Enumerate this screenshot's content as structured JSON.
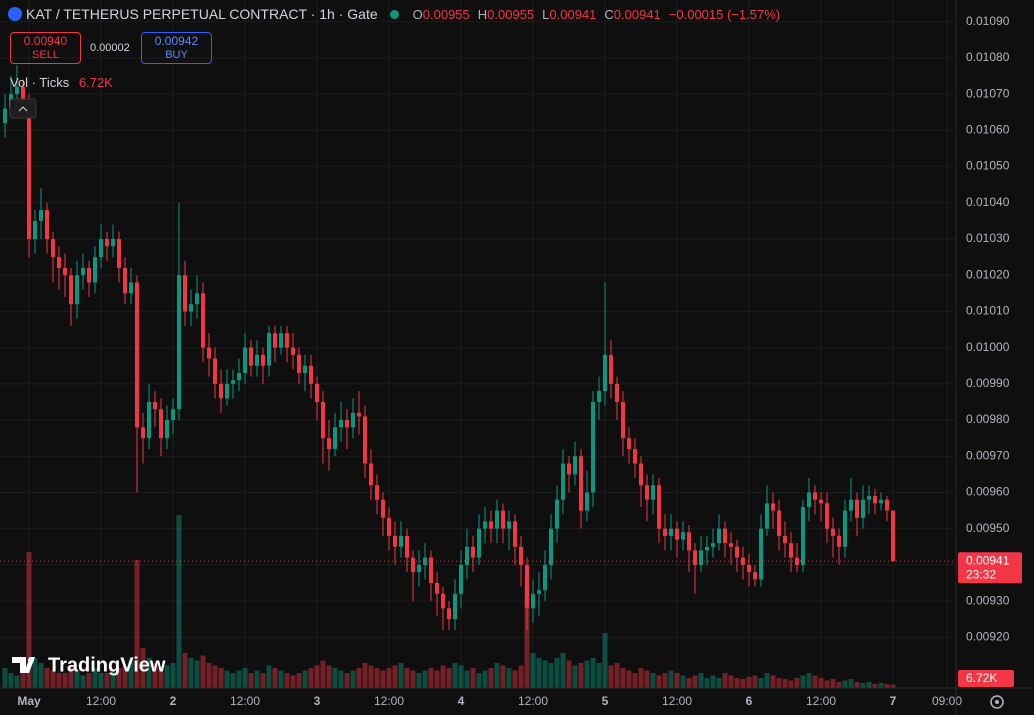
{
  "header": {
    "title": "KAT / TETHERUS PERPETUAL CONTRACT · 1h · Gate",
    "o_label": "O",
    "h_label": "H",
    "l_label": "L",
    "c_label": "C",
    "change": "−0.00015 (−1.57%)"
  },
  "trade": {
    "sell_price": "0.00940",
    "sell": "SELL",
    "spread": "0.00002",
    "buy_price": "0.00942",
    "buy": "BUY"
  },
  "volume_legend": "Vol · Ticks",
  "countdown": "23:32",
  "brand": "TradingView",
  "chart_data": {
    "type": "candlestick",
    "categories": [
      null,
      null,
      null,
      null,
      "May",
      null,
      null,
      null,
      null,
      null,
      null,
      null,
      null,
      null,
      null,
      null,
      "12:00",
      null,
      null,
      null,
      null,
      null,
      null,
      null,
      null,
      null,
      null,
      null,
      "2",
      null,
      null,
      null,
      null,
      null,
      null,
      null,
      null,
      null,
      null,
      null,
      "12:00",
      null,
      null,
      null,
      null,
      null,
      null,
      null,
      null,
      null,
      null,
      null,
      "3",
      null,
      null,
      null,
      null,
      null,
      null,
      null,
      null,
      null,
      null,
      null,
      "12:00",
      null,
      null,
      null,
      null,
      null,
      null,
      null,
      null,
      null,
      null,
      null,
      "4",
      null,
      null,
      null,
      null,
      null,
      null,
      null,
      null,
      null,
      null,
      null,
      "12:00",
      null,
      null,
      null,
      null,
      null,
      null,
      null,
      null,
      null,
      null,
      null,
      "5",
      null,
      null,
      null,
      null,
      null,
      null,
      null,
      null,
      null,
      null,
      null,
      "12:00",
      null,
      null,
      null,
      null,
      null,
      null,
      null,
      null,
      null,
      null,
      null,
      "6",
      null,
      null,
      null,
      null,
      null,
      null,
      null,
      null,
      null,
      null,
      null,
      "12:00",
      null,
      null,
      null,
      null,
      null,
      null,
      null,
      null,
      null,
      null,
      null,
      "7",
      null,
      null,
      null,
      null,
      null,
      null,
      null,
      null,
      "09:00"
    ],
    "open": [
      0.01062,
      0.01066,
      0.0107,
      0.01072,
      0.01068,
      0.0103,
      0.01035,
      0.01038,
      0.0103,
      0.01025,
      0.01022,
      0.0102,
      0.01012,
      0.0102,
      0.01022,
      0.01018,
      0.01025,
      0.0103,
      0.01028,
      0.0103,
      0.01022,
      0.01015,
      0.01018,
      0.00978,
      0.00975,
      0.00985,
      0.00983,
      0.00975,
      0.0098,
      0.00983,
      0.0102,
      0.0101,
      0.01012,
      0.01015,
      0.01,
      0.00997,
      0.0099,
      0.00986,
      0.0099,
      0.00991,
      0.00993,
      0.01,
      0.00995,
      0.00998,
      0.00995,
      0.01004,
      0.01,
      0.01004,
      0.01,
      0.00998,
      0.00993,
      0.00995,
      0.0099,
      0.00985,
      0.00975,
      0.00972,
      0.00978,
      0.0098,
      0.00978,
      0.00982,
      0.00981,
      0.00968,
      0.00962,
      0.00958,
      0.00953,
      0.00948,
      0.00945,
      0.00948,
      0.00942,
      0.00938,
      0.0094,
      0.00942,
      0.00935,
      0.00932,
      0.00928,
      0.00925,
      0.00932,
      0.0094,
      0.00945,
      0.00942,
      0.0095,
      0.00952,
      0.0095,
      0.00955,
      0.0095,
      0.00952,
      0.00945,
      0.0094,
      0.00928,
      0.00932,
      0.00933,
      0.0094,
      0.0095,
      0.00958,
      0.00968,
      0.00965,
      0.0097,
      0.00955,
      0.0096,
      0.00985,
      0.00988,
      0.00998,
      0.0099,
      0.00985,
      0.00975,
      0.00972,
      0.00968,
      0.00962,
      0.00958,
      0.00962,
      0.0095,
      0.00948,
      0.0095,
      0.00947,
      0.00949,
      0.00944,
      0.0094,
      0.00944,
      0.00945,
      0.00946,
      0.0095,
      0.00946,
      0.00945,
      0.00942,
      0.0094,
      0.00938,
      0.00936,
      0.0095,
      0.00957,
      0.00955,
      0.00948,
      0.00946,
      0.00942,
      0.0094,
      0.00956,
      0.0096,
      0.00958,
      0.00957,
      0.0095,
      0.00948,
      0.00945,
      0.00955,
      0.00958,
      0.00953,
      0.00958,
      0.00959,
      0.00957,
      0.00958,
      0.00955,
      null,
      null,
      null,
      null,
      null,
      null,
      null,
      null,
      null
    ],
    "high": [
      0.0107,
      0.01075,
      0.01078,
      0.01074,
      0.0107,
      0.01038,
      0.01044,
      0.0104,
      0.01032,
      0.01028,
      0.01026,
      0.01022,
      0.01024,
      0.01026,
      0.01024,
      0.01028,
      0.01034,
      0.01032,
      0.01034,
      0.01032,
      0.01025,
      0.01022,
      0.0102,
      0.00982,
      0.0099,
      0.00988,
      0.00986,
      0.00984,
      0.00986,
      0.0104,
      0.01024,
      0.01016,
      0.0102,
      0.01018,
      0.01004,
      0.01,
      0.00994,
      0.00994,
      0.00994,
      0.00997,
      0.01004,
      0.01002,
      0.01002,
      0.01,
      0.01006,
      0.01006,
      0.01006,
      0.01006,
      0.01004,
      0.01,
      0.00998,
      0.00998,
      0.00992,
      0.00988,
      0.0098,
      0.00982,
      0.00985,
      0.00983,
      0.00986,
      0.00988,
      0.00984,
      0.00972,
      0.00965,
      0.0096,
      0.00956,
      0.00952,
      0.00952,
      0.0095,
      0.00944,
      0.00944,
      0.00946,
      0.00944,
      0.00938,
      0.00934,
      0.0093,
      0.00936,
      0.00944,
      0.0095,
      0.00948,
      0.00954,
      0.00956,
      0.00955,
      0.00958,
      0.00957,
      0.00955,
      0.00954,
      0.00948,
      0.00942,
      0.00936,
      0.00938,
      0.00944,
      0.00954,
      0.00962,
      0.00972,
      0.0097,
      0.00974,
      0.00972,
      0.00966,
      0.00988,
      0.00992,
      0.01018,
      0.01002,
      0.00992,
      0.00988,
      0.00978,
      0.00975,
      0.0097,
      0.00965,
      0.00965,
      0.00964,
      0.00954,
      0.00954,
      0.00952,
      0.00952,
      0.00951,
      0.00946,
      0.00948,
      0.00948,
      0.0095,
      0.00954,
      0.00952,
      0.00949,
      0.00947,
      0.00945,
      0.00943,
      0.0094,
      0.00954,
      0.00962,
      0.0096,
      0.00958,
      0.00952,
      0.00949,
      0.00946,
      0.00958,
      0.00964,
      0.00962,
      0.0096,
      0.0096,
      0.00953,
      0.0095,
      0.00958,
      0.00964,
      0.0096,
      0.00962,
      0.00962,
      0.00961,
      0.0096,
      0.00959,
      0.00955,
      null,
      null,
      null,
      null,
      null,
      null,
      null,
      null,
      null
    ],
    "low": [
      0.01058,
      0.01064,
      0.01066,
      0.01064,
      0.01025,
      0.01026,
      0.0103,
      0.01026,
      0.01018,
      0.01016,
      0.01014,
      0.01006,
      0.01008,
      0.01016,
      0.01014,
      0.01015,
      0.01022,
      0.01024,
      0.01025,
      0.01018,
      0.01012,
      0.01012,
      0.0096,
      0.00968,
      0.00972,
      0.00978,
      0.0097,
      0.00972,
      0.00976,
      0.0098,
      0.01006,
      0.01006,
      0.01008,
      0.00996,
      0.00992,
      0.00986,
      0.00982,
      0.00984,
      0.00986,
      0.00988,
      0.0099,
      0.00992,
      0.00992,
      0.0099,
      0.00992,
      0.00996,
      0.00998,
      0.00996,
      0.00994,
      0.0099,
      0.00988,
      0.00986,
      0.0098,
      0.00968,
      0.00966,
      0.0097,
      0.00974,
      0.00972,
      0.00975,
      0.00976,
      0.00964,
      0.00958,
      0.00954,
      0.00948,
      0.00944,
      0.0094,
      0.00942,
      0.00938,
      0.0093,
      0.00934,
      0.00936,
      0.0093,
      0.00926,
      0.00922,
      0.00922,
      0.00922,
      0.00928,
      0.00936,
      0.00938,
      0.0094,
      0.00946,
      0.00946,
      0.00946,
      0.00946,
      0.00944,
      0.0094,
      0.00934,
      0.00922,
      0.00924,
      0.00926,
      0.0093,
      0.00936,
      0.00946,
      0.00954,
      0.0096,
      0.00962,
      0.0095,
      0.00952,
      0.00956,
      0.0098,
      0.00984,
      0.00986,
      0.0098,
      0.0097,
      0.00968,
      0.00964,
      0.00956,
      0.00952,
      0.00954,
      0.00946,
      0.00944,
      0.00944,
      0.00942,
      0.00944,
      0.00938,
      0.00932,
      0.00938,
      0.0094,
      0.00942,
      0.00944,
      0.00942,
      0.0094,
      0.00938,
      0.00936,
      0.00934,
      0.00934,
      0.00934,
      0.00948,
      0.0095,
      0.00944,
      0.00942,
      0.00938,
      0.00938,
      0.00938,
      0.00952,
      0.00954,
      0.00952,
      0.00946,
      0.00942,
      0.0094,
      0.00942,
      0.00952,
      0.00948,
      0.0095,
      0.00954,
      0.00954,
      0.00955,
      0.00952,
      0.00941,
      null,
      null,
      null,
      null,
      null,
      null,
      null,
      null,
      null
    ],
    "close": [
      0.01066,
      0.0107,
      0.01072,
      0.01068,
      0.0103,
      0.01035,
      0.01038,
      0.0103,
      0.01025,
      0.01022,
      0.0102,
      0.01012,
      0.0102,
      0.01022,
      0.01018,
      0.01025,
      0.0103,
      0.01028,
      0.0103,
      0.01022,
      0.01015,
      0.01018,
      0.00978,
      0.00975,
      0.00985,
      0.00983,
      0.00975,
      0.0098,
      0.00983,
      0.0102,
      0.0101,
      0.01012,
      0.01015,
      0.01,
      0.00997,
      0.0099,
      0.00986,
      0.0099,
      0.00991,
      0.00993,
      0.01,
      0.00995,
      0.00998,
      0.00995,
      0.01004,
      0.01,
      0.01004,
      0.01,
      0.00998,
      0.00993,
      0.00995,
      0.0099,
      0.00985,
      0.00975,
      0.00972,
      0.00978,
      0.0098,
      0.00978,
      0.00982,
      0.00981,
      0.00968,
      0.00962,
      0.00958,
      0.00953,
      0.00948,
      0.00945,
      0.00948,
      0.00942,
      0.00938,
      0.0094,
      0.00942,
      0.00935,
      0.00932,
      0.00928,
      0.00925,
      0.00932,
      0.0094,
      0.00945,
      0.00942,
      0.0095,
      0.00952,
      0.0095,
      0.00955,
      0.0095,
      0.00952,
      0.00945,
      0.0094,
      0.00928,
      0.00932,
      0.00933,
      0.0094,
      0.0095,
      0.00958,
      0.00968,
      0.00965,
      0.0097,
      0.00955,
      0.0096,
      0.00985,
      0.00988,
      0.00998,
      0.0099,
      0.00985,
      0.00975,
      0.00972,
      0.00968,
      0.00962,
      0.00958,
      0.00962,
      0.0095,
      0.00948,
      0.0095,
      0.00947,
      0.00949,
      0.00944,
      0.0094,
      0.00944,
      0.00945,
      0.00946,
      0.0095,
      0.00946,
      0.00945,
      0.00942,
      0.0094,
      0.00938,
      0.00936,
      0.0095,
      0.00957,
      0.00955,
      0.00948,
      0.00946,
      0.00942,
      0.0094,
      0.00956,
      0.0096,
      0.00958,
      0.00957,
      0.0095,
      0.00948,
      0.00945,
      0.00955,
      0.00958,
      0.00953,
      0.00958,
      0.00959,
      0.00957,
      0.00958,
      0.00955,
      0.00941,
      null,
      null,
      null,
      null,
      null,
      null,
      null,
      null,
      null
    ],
    "volume": [
      40000,
      30000,
      25000,
      35000,
      272000,
      60000,
      50000,
      40000,
      35000,
      30000,
      30000,
      45000,
      35000,
      25000,
      30000,
      40000,
      30000,
      30000,
      35000,
      40000,
      45000,
      55000,
      256000,
      80000,
      60000,
      50000,
      40000,
      45000,
      50000,
      346000,
      70000,
      60000,
      55000,
      65000,
      50000,
      45000,
      40000,
      35000,
      30000,
      35000,
      40000,
      30000,
      35000,
      30000,
      45000,
      40000,
      35000,
      30000,
      25000,
      30000,
      35000,
      40000,
      45000,
      55000,
      45000,
      40000,
      35000,
      30000,
      35000,
      40000,
      50000,
      45000,
      40000,
      35000,
      40000,
      45000,
      50000,
      40000,
      35000,
      30000,
      35000,
      40000,
      35000,
      45000,
      40000,
      50000,
      45000,
      35000,
      40000,
      30000,
      35000,
      40000,
      50000,
      45000,
      40000,
      35000,
      45000,
      226000,
      70000,
      60000,
      55000,
      50000,
      60000,
      70000,
      55000,
      45000,
      50000,
      55000,
      60000,
      50000,
      110000,
      45000,
      50000,
      40000,
      35000,
      30000,
      40000,
      35000,
      30000,
      25000,
      30000,
      35000,
      30000,
      25000,
      20000,
      25000,
      30000,
      20000,
      25000,
      20000,
      30000,
      25000,
      20000,
      18000,
      22000,
      25000,
      20000,
      30000,
      25000,
      20000,
      18000,
      15000,
      20000,
      25000,
      30000,
      25000,
      20000,
      15000,
      18000,
      12000,
      15000,
      18000,
      12000,
      10000,
      12000,
      8000,
      10000,
      8000,
      6720,
      null,
      null,
      null,
      null,
      null,
      null,
      null,
      null,
      null
    ],
    "volume_label": "6.72K",
    "up_color": "#089981",
    "down_color": "#f23645",
    "ylim": [
      0.00906,
      0.01096
    ],
    "yticks": [
      {
        "value": 0.0092,
        "label": "0.00920"
      },
      {
        "value": 0.0093,
        "label": "0.00930"
      },
      {
        "value": 0.0094,
        "label": "0.00940"
      },
      {
        "value": 0.0095,
        "label": "0.00950"
      },
      {
        "value": 0.0096,
        "label": "0.00960"
      },
      {
        "value": 0.0097,
        "label": "0.00970"
      },
      {
        "value": 0.0098,
        "label": "0.00980"
      },
      {
        "value": 0.0099,
        "label": "0.00990"
      },
      {
        "value": 0.01,
        "label": "0.01000"
      },
      {
        "value": 0.0101,
        "label": "0.01010"
      },
      {
        "value": 0.0102,
        "label": "0.01020"
      },
      {
        "value": 0.0103,
        "label": "0.01030"
      },
      {
        "value": 0.0104,
        "label": "0.01040"
      },
      {
        "value": 0.0105,
        "label": "0.01050"
      },
      {
        "value": 0.0106,
        "label": "0.01060"
      },
      {
        "value": 0.0107,
        "label": "0.01070"
      },
      {
        "value": 0.0108,
        "label": "0.01080"
      },
      {
        "value": 0.0109,
        "label": "0.01090"
      }
    ],
    "grid": true
  }
}
